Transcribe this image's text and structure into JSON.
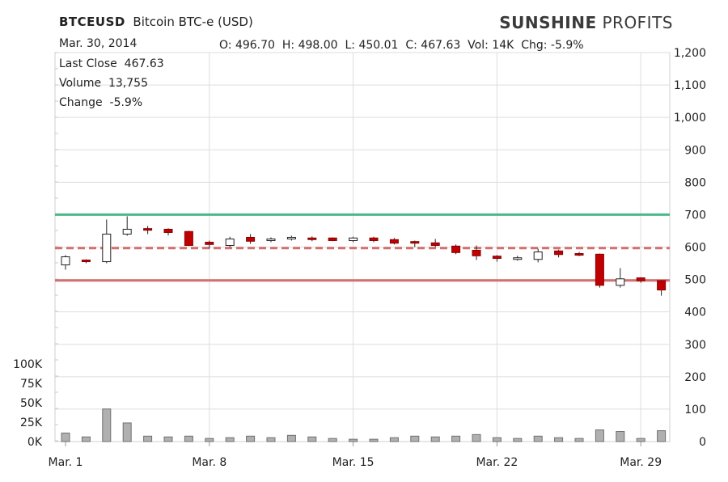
{
  "header": {
    "symbol": "BTCEUSD",
    "description": "Bitcoin BTC-e (USD)",
    "brand_bold": "SUNSHINE",
    "brand_rest": " PROFITS",
    "date": "Mar. 30, 2014",
    "ohlc": {
      "open": "496.70",
      "high": "498.00",
      "low": "450.01",
      "close": "467.63",
      "vol": "14K",
      "chg": "-5.9%"
    }
  },
  "info": {
    "last_close_label": "Last Close",
    "last_close": "467.63",
    "volume_label": "Volume",
    "volume": "13,755",
    "change_label": "Change",
    "change": "-5.9%"
  },
  "colors": {
    "up": "#ffffff",
    "down": "#c00000",
    "grid": "#dddddd",
    "support": "#d27070",
    "resistance": "#4cb88a",
    "volume": "#b0b0b0"
  },
  "chart_data": {
    "type": "candlestick",
    "x_tick_labels": [
      "Mar. 1",
      "Mar. 8",
      "Mar. 15",
      "Mar. 22",
      "Mar. 29"
    ],
    "x_tick_days": [
      1,
      8,
      15,
      22,
      29
    ],
    "price_axis": {
      "min": 0,
      "max": 1200,
      "step": 100,
      "side": "right",
      "tick_labels": [
        "0",
        "100",
        "200",
        "300",
        "400",
        "500",
        "600",
        "700",
        "800",
        "900",
        "1,000",
        "1,100",
        "1,200"
      ]
    },
    "volume_axis": {
      "min": 0,
      "max": 100000,
      "side": "left",
      "tick_values": [
        0,
        25000,
        50000,
        75000,
        100000
      ],
      "tick_labels": [
        "0K",
        "25K",
        "50K",
        "75K",
        "100K"
      ]
    },
    "horizontal_lines": [
      {
        "value": 700,
        "style": "solid",
        "color": "#4cb88a"
      },
      {
        "value": 597,
        "style": "dashed",
        "color": "#d27070"
      },
      {
        "value": 497,
        "style": "solid",
        "color": "#d27070"
      }
    ],
    "candles": [
      {
        "day": 1,
        "o": 545,
        "h": 575,
        "l": 530,
        "c": 570,
        "v": 11000
      },
      {
        "day": 2,
        "o": 560,
        "h": 562,
        "l": 550,
        "c": 555,
        "v": 6000
      },
      {
        "day": 3,
        "o": 555,
        "h": 685,
        "l": 550,
        "c": 640,
        "v": 42000
      },
      {
        "day": 4,
        "o": 640,
        "h": 695,
        "l": 635,
        "c": 655,
        "v": 24000
      },
      {
        "day": 5,
        "o": 657,
        "h": 665,
        "l": 640,
        "c": 652,
        "v": 7000
      },
      {
        "day": 6,
        "o": 655,
        "h": 658,
        "l": 636,
        "c": 645,
        "v": 6000
      },
      {
        "day": 7,
        "o": 648,
        "h": 650,
        "l": 603,
        "c": 605,
        "v": 7000
      },
      {
        "day": 8,
        "o": 615,
        "h": 620,
        "l": 595,
        "c": 608,
        "v": 4000
      },
      {
        "day": 9,
        "o": 605,
        "h": 632,
        "l": 600,
        "c": 625,
        "v": 5000
      },
      {
        "day": 10,
        "o": 630,
        "h": 640,
        "l": 610,
        "c": 618,
        "v": 7000
      },
      {
        "day": 11,
        "o": 623,
        "h": 630,
        "l": 615,
        "c": 625,
        "v": 5000
      },
      {
        "day": 12,
        "o": 627,
        "h": 635,
        "l": 620,
        "c": 630,
        "v": 8000
      },
      {
        "day": 13,
        "o": 628,
        "h": 633,
        "l": 618,
        "c": 626,
        "v": 6000
      },
      {
        "day": 14,
        "o": 628,
        "h": 630,
        "l": 618,
        "c": 620,
        "v": 4000
      },
      {
        "day": 15,
        "o": 620,
        "h": 632,
        "l": 615,
        "c": 628,
        "v": 3000
      },
      {
        "day": 16,
        "o": 628,
        "h": 632,
        "l": 615,
        "c": 620,
        "v": 3000
      },
      {
        "day": 17,
        "o": 623,
        "h": 628,
        "l": 608,
        "c": 612,
        "v": 5000
      },
      {
        "day": 18,
        "o": 617,
        "h": 620,
        "l": 600,
        "c": 613,
        "v": 7000
      },
      {
        "day": 19,
        "o": 613,
        "h": 625,
        "l": 600,
        "c": 605,
        "v": 6000
      },
      {
        "day": 20,
        "o": 603,
        "h": 608,
        "l": 578,
        "c": 583,
        "v": 7000
      },
      {
        "day": 21,
        "o": 590,
        "h": 605,
        "l": 560,
        "c": 573,
        "v": 9000
      },
      {
        "day": 22,
        "o": 572,
        "h": 575,
        "l": 555,
        "c": 565,
        "v": 5000
      },
      {
        "day": 23,
        "o": 565,
        "h": 573,
        "l": 558,
        "c": 567,
        "v": 4000
      },
      {
        "day": 24,
        "o": 562,
        "h": 595,
        "l": 553,
        "c": 585,
        "v": 7000
      },
      {
        "day": 25,
        "o": 588,
        "h": 592,
        "l": 568,
        "c": 577,
        "v": 5000
      },
      {
        "day": 26,
        "o": 580,
        "h": 585,
        "l": 572,
        "c": 578,
        "v": 4000
      },
      {
        "day": 27,
        "o": 578,
        "h": 580,
        "l": 475,
        "c": 482,
        "v": 15000
      },
      {
        "day": 28,
        "o": 482,
        "h": 535,
        "l": 475,
        "c": 502,
        "v": 13000
      },
      {
        "day": 29,
        "o": 505,
        "h": 507,
        "l": 490,
        "c": 496,
        "v": 4000
      },
      {
        "day": 30,
        "o": 496.7,
        "h": 498.0,
        "l": 450.01,
        "c": 467.63,
        "v": 14000
      }
    ]
  }
}
